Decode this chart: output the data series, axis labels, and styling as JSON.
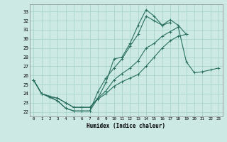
{
  "xlabel": "Humidex (Indice chaleur)",
  "xlim": [
    -0.5,
    23.5
  ],
  "ylim": [
    21.5,
    33.8
  ],
  "yticks": [
    22,
    23,
    24,
    25,
    26,
    27,
    28,
    29,
    30,
    31,
    32,
    33
  ],
  "xticks": [
    0,
    1,
    2,
    3,
    4,
    5,
    6,
    7,
    8,
    9,
    10,
    11,
    12,
    13,
    14,
    15,
    16,
    17,
    18,
    19,
    20,
    21,
    22,
    23
  ],
  "bg_color": "#cce9e4",
  "grid_color": "#a8d4cc",
  "line_color": "#2a7060",
  "series": [
    [
      25.5,
      24.0,
      23.7,
      23.2,
      22.4,
      22.1,
      22.1,
      22.1,
      23.5,
      25.2,
      27.8,
      28.0,
      29.5,
      31.5,
      33.2,
      32.5,
      31.5,
      32.1,
      31.5,
      30.5,
      null,
      null,
      null,
      null
    ],
    [
      25.5,
      24.0,
      23.6,
      23.2,
      22.4,
      22.1,
      22.1,
      22.1,
      24.2,
      25.7,
      26.8,
      27.8,
      29.2,
      30.5,
      32.5,
      32.0,
      31.5,
      31.8,
      null,
      null,
      null,
      null,
      null,
      null
    ],
    [
      25.5,
      24.0,
      23.7,
      23.5,
      23.0,
      22.5,
      22.5,
      22.5,
      23.5,
      24.3,
      25.5,
      26.2,
      26.8,
      27.6,
      29.0,
      29.5,
      30.3,
      30.8,
      31.3,
      27.5,
      26.3,
      26.4,
      26.6,
      26.8
    ],
    [
      25.5,
      24.0,
      23.7,
      23.5,
      23.0,
      22.5,
      22.5,
      22.5,
      23.4,
      24.0,
      24.8,
      25.3,
      25.7,
      26.1,
      27.0,
      28.0,
      29.0,
      29.8,
      30.3,
      30.5,
      null,
      null,
      null,
      null
    ]
  ]
}
